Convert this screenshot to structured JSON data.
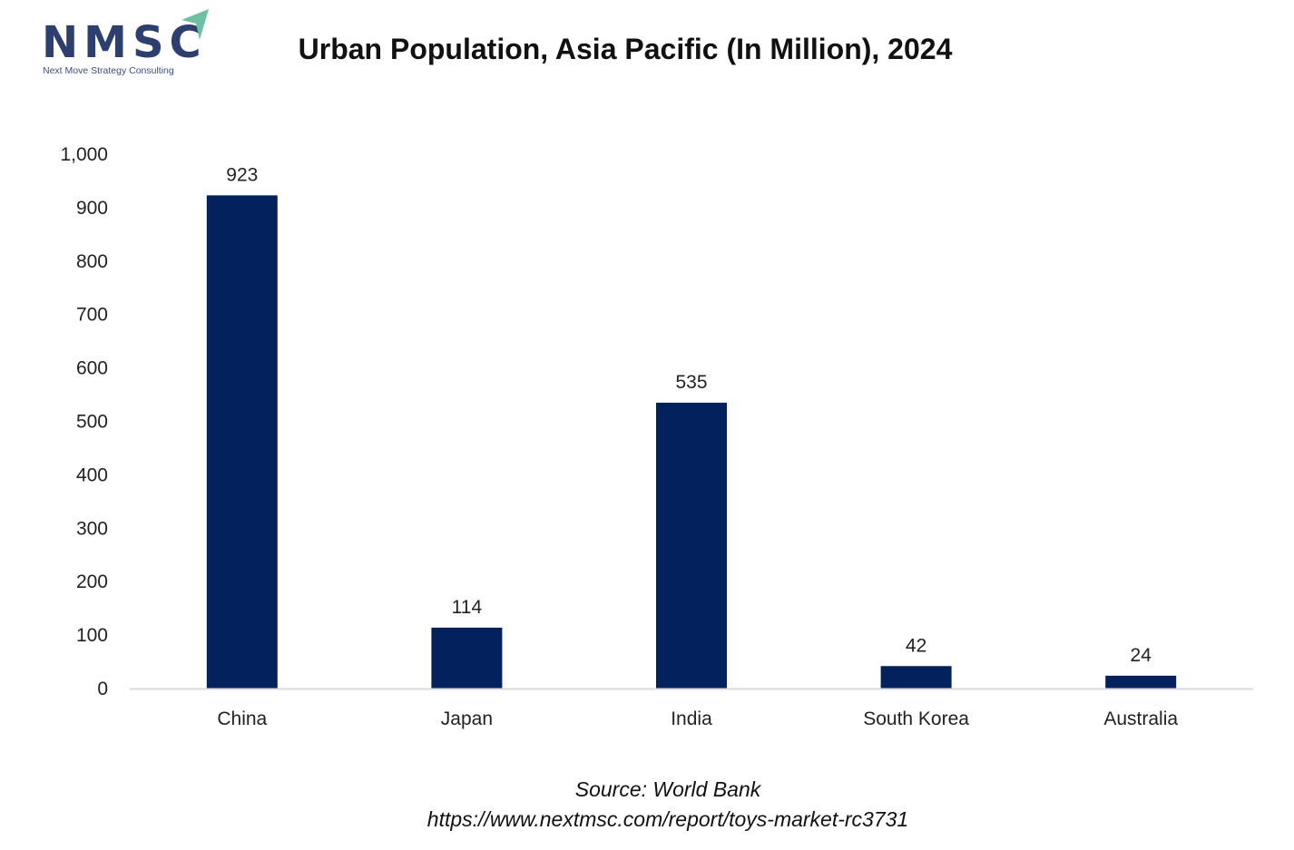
{
  "logo": {
    "name": "NMSC",
    "subtitle": "Next Move Strategy Consulting"
  },
  "chart_data": {
    "type": "bar",
    "title": "Urban Population, Asia Pacific (In Million), 2024",
    "categories": [
      "China",
      "Japan",
      "India",
      "South Korea",
      "Australia"
    ],
    "values": [
      923,
      114,
      535,
      42,
      24
    ],
    "data_labels": [
      "923",
      "114",
      "535",
      "42",
      "24"
    ],
    "xlabel": "",
    "ylabel": "",
    "ylim": [
      0,
      1000
    ],
    "yticks": [
      0,
      100,
      200,
      300,
      400,
      500,
      600,
      700,
      800,
      900,
      1000
    ],
    "ytick_labels": [
      "0",
      "100",
      "200",
      "300",
      "400",
      "500",
      "600",
      "700",
      "800",
      "900",
      "1,000"
    ],
    "grid": false,
    "legend": "none",
    "bar_color": "#03215c",
    "axis_color": "#d9d9d9"
  },
  "footer": {
    "source": "Source: World Bank",
    "url": "https://www.nextmsc.com/report/toys-market-rc3731"
  }
}
